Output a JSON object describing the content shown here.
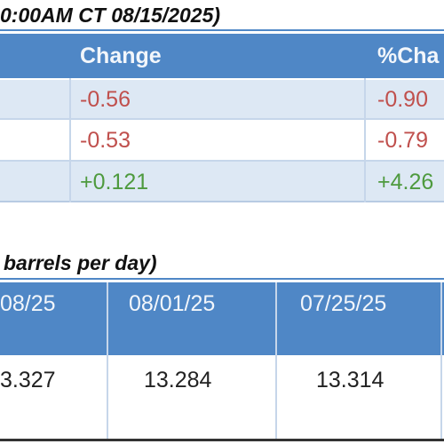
{
  "price_table": {
    "title": "0:00AM CT 08/15/2025)",
    "header": [
      "Change",
      "%Cha"
    ],
    "rows": [
      [
        "-0.56",
        "-0.90"
      ],
      [
        "-0.53",
        "-0.79"
      ],
      [
        "+0.121",
        "+4.26"
      ]
    ]
  },
  "production_table": {
    "title": "barrels per day)",
    "header": [
      "08/25",
      "08/01/25",
      "07/25/25"
    ],
    "rows": [
      [
        "3.327",
        "13.284",
        "13.314"
      ]
    ]
  }
}
